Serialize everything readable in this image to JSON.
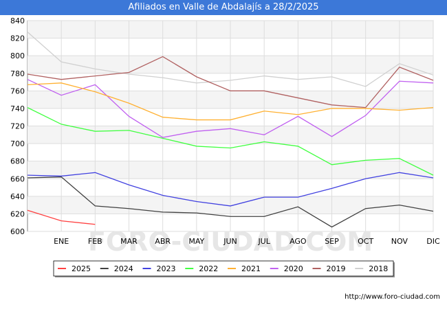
{
  "header": {
    "title": "Afiliados en Valle de Abdalajís a 28/2/2025"
  },
  "footer": {
    "url": "http://www.foro-ciudad.com"
  },
  "watermark": "FORO-CIUDAD.COM",
  "chart_data": {
    "type": "line",
    "title": "Afiliados en Valle de Abdalajís a 28/2/2025",
    "xlabel": "",
    "ylabel": "",
    "categories": [
      "",
      "ENE",
      "FEB",
      "MAR",
      "ABR",
      "MAY",
      "JUN",
      "JUL",
      "AGO",
      "SEP",
      "OCT",
      "NOV",
      "DIC"
    ],
    "ylim": [
      600,
      840
    ],
    "yticks": [
      600,
      620,
      640,
      660,
      680,
      700,
      720,
      740,
      760,
      780,
      800,
      820,
      840
    ],
    "grid": true,
    "legend_position": "bottom",
    "series": [
      {
        "name": "2025",
        "color": "#ff4040",
        "values": [
          624,
          612,
          608,
          null,
          null,
          null,
          null,
          null,
          null,
          null,
          null,
          null,
          null
        ]
      },
      {
        "name": "2024",
        "color": "#404040",
        "values": [
          661,
          662,
          629,
          626,
          622,
          621,
          617,
          617,
          628,
          605,
          626,
          630,
          623
        ]
      },
      {
        "name": "2023",
        "color": "#4040e0",
        "values": [
          664,
          663,
          667,
          653,
          641,
          634,
          629,
          639,
          639,
          649,
          660,
          667,
          661
        ]
      },
      {
        "name": "2022",
        "color": "#40ff40",
        "values": [
          741,
          722,
          714,
          715,
          706,
          697,
          695,
          702,
          697,
          676,
          681,
          683,
          664
        ]
      },
      {
        "name": "2021",
        "color": "#ffb030",
        "values": [
          767,
          769,
          759,
          746,
          730,
          727,
          727,
          737,
          733,
          740,
          740,
          738,
          741
        ]
      },
      {
        "name": "2020",
        "color": "#c060f0",
        "values": [
          773,
          755,
          767,
          731,
          707,
          714,
          717,
          710,
          731,
          708,
          732,
          771,
          769
        ]
      },
      {
        "name": "2019",
        "color": "#b06060",
        "values": [
          779,
          773,
          777,
          781,
          799,
          776,
          760,
          760,
          752,
          744,
          741,
          787,
          772
        ]
      },
      {
        "name": "2018",
        "color": "#d0d0d0",
        "values": [
          827,
          793,
          785,
          779,
          775,
          769,
          772,
          777,
          773,
          776,
          765,
          791,
          778
        ]
      }
    ]
  }
}
